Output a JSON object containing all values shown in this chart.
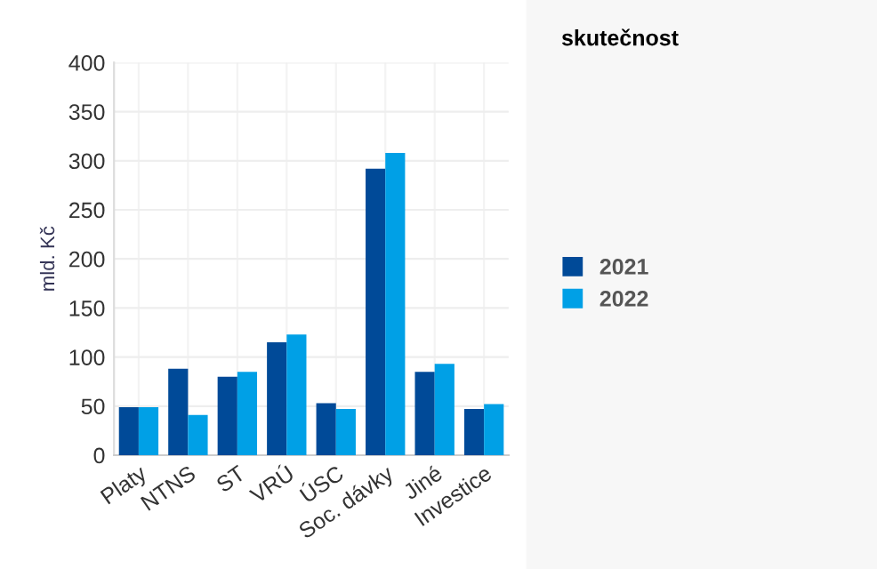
{
  "chart_data": {
    "type": "bar",
    "ylabel": "mld. Kč",
    "legend_title": "skutečnost",
    "categories": [
      "Platy",
      "NTNS",
      "ST",
      "VRÚ",
      "ÚSC",
      "Soc. dávky",
      "Jiné",
      "Investice"
    ],
    "series": [
      {
        "name": "2021",
        "color": "#004a98",
        "values": [
          49,
          88,
          80,
          115,
          53,
          292,
          85,
          47
        ]
      },
      {
        "name": "2022",
        "color": "#00a0e6",
        "values": [
          49,
          41,
          85,
          123,
          47,
          308,
          93,
          52
        ]
      }
    ],
    "ylim": [
      0,
      400
    ],
    "yticks": [
      0,
      50,
      100,
      150,
      200,
      250,
      300,
      350,
      400
    ],
    "grid": true,
    "legend": "right"
  }
}
